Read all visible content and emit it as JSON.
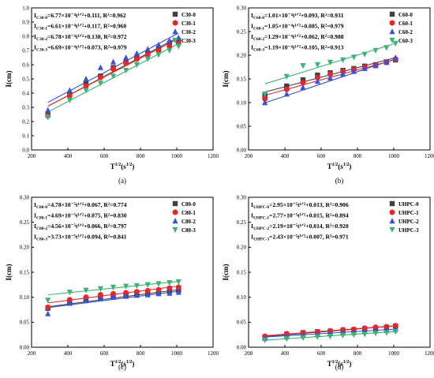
{
  "chart_data": [
    {
      "type": "scatter",
      "panel_label": "(a)",
      "xlabel": "T",
      "xlabel_sup": "1/2",
      "xlabel_unit": "(s",
      "xlabel_unit_sup": "1/2",
      "xlabel_unit_close": ")",
      "ylabel": "I(cm)",
      "xlim": [
        200,
        1200
      ],
      "ylim": [
        0,
        1.0
      ],
      "xticks": [
        200,
        400,
        600,
        800,
        1000,
        1200
      ],
      "yticks": [
        0.0,
        0.1,
        0.2,
        0.3,
        0.4,
        0.5,
        0.6,
        0.7,
        0.8,
        0.9,
        1.0
      ],
      "ytick_labels": [
        "0.0",
        "0.1",
        "0.2",
        "0.3",
        "0.4",
        "0.5",
        "0.6",
        "0.7",
        "0.8",
        "0.9",
        "1.0"
      ],
      "legend_position": "top-right",
      "x": [
        290,
        410,
        500,
        580,
        650,
        720,
        780,
        840,
        900,
        960,
        1010
      ],
      "series": [
        {
          "name": "C30-0",
          "marker": "square",
          "color": "#404040",
          "values": [
            0.25,
            0.39,
            0.47,
            0.52,
            0.58,
            0.62,
            0.65,
            0.68,
            0.71,
            0.75,
            0.77
          ],
          "fit": [
            0.111,
            0.000677
          ]
        },
        {
          "name": "C30-1",
          "marker": "circle",
          "color": "#e8262b",
          "values": [
            0.24,
            0.38,
            0.45,
            0.51,
            0.57,
            0.61,
            0.64,
            0.67,
            0.7,
            0.73,
            0.75
          ],
          "fit": [
            0.117,
            0.000661
          ]
        },
        {
          "name": "C30-2",
          "marker": "triangle-up",
          "color": "#3852d8",
          "values": [
            0.28,
            0.42,
            0.5,
            0.58,
            0.62,
            0.65,
            0.68,
            0.71,
            0.74,
            0.77,
            0.79
          ],
          "fit": [
            0.138,
            0.000678
          ]
        },
        {
          "name": "C30-3",
          "marker": "triangle-down",
          "color": "#3bb372",
          "values": [
            0.23,
            0.35,
            0.42,
            0.47,
            0.52,
            0.56,
            0.6,
            0.64,
            0.67,
            0.7,
            0.73
          ],
          "fit": [
            0.073,
            0.000669
          ]
        }
      ],
      "annotations": [
        {
          "sub": "C30-0",
          "eq": "=6.77×10⁻⁴t¹ᐟ²+0.111, R²=0.962"
        },
        {
          "sub": "C30-1",
          "eq": "=6.61×10⁻⁴t¹ᐟ²+0.117, R²=0.960"
        },
        {
          "sub": "C30-2",
          "eq": "=6.78×10⁻⁴t¹ᐟ²+0.138, R²=0.972"
        },
        {
          "sub": "C30-3",
          "eq": "=6.69×10⁻⁴t¹ᐟ²+0.073, R²=0.979"
        }
      ]
    },
    {
      "type": "scatter",
      "panel_label": "(b)",
      "xlabel": "T",
      "xlabel_sup": "1/2",
      "xlabel_unit": "(s",
      "xlabel_unit_sup": "1/2",
      "xlabel_unit_close": ")",
      "ylabel": "I(cm)",
      "xlim": [
        200,
        1200
      ],
      "ylim": [
        0.0,
        0.3
      ],
      "xticks": [
        200,
        400,
        600,
        800,
        1000,
        1200
      ],
      "yticks": [
        0.0,
        0.05,
        0.1,
        0.15,
        0.2,
        0.25,
        0.3
      ],
      "ytick_labels": [
        "0.00",
        "0.05",
        "0.10",
        "0.15",
        "0.20",
        "0.25",
        "0.30"
      ],
      "legend_position": "top-right",
      "x": [
        290,
        410,
        500,
        580,
        650,
        720,
        780,
        840,
        900,
        960,
        1010
      ],
      "series": [
        {
          "name": "C60-0",
          "marker": "square",
          "color": "#404040",
          "values": [
            0.115,
            0.135,
            0.148,
            0.158,
            0.163,
            0.168,
            0.172,
            0.177,
            0.18,
            0.186,
            0.19
          ],
          "fit": [
            0.093,
            0.000101
          ]
        },
        {
          "name": "C60-1",
          "marker": "circle",
          "color": "#e8262b",
          "values": [
            0.108,
            0.128,
            0.142,
            0.153,
            0.16,
            0.166,
            0.17,
            0.175,
            0.179,
            0.185,
            0.192
          ],
          "fit": [
            0.085,
            0.000105
          ]
        },
        {
          "name": "C60-2",
          "marker": "triangle-up",
          "color": "#3852d8",
          "values": [
            0.1,
            0.118,
            0.132,
            0.145,
            0.152,
            0.16,
            0.166,
            0.172,
            0.178,
            0.185,
            0.195
          ],
          "fit": [
            0.062,
            0.000129
          ]
        },
        {
          "name": "C60-3",
          "marker": "triangle-down",
          "color": "#3bb372",
          "values": [
            0.118,
            0.155,
            0.178,
            0.18,
            0.185,
            0.19,
            0.196,
            0.202,
            0.21,
            0.216,
            0.225
          ],
          "fit": [
            0.105,
            0.000119
          ]
        }
      ],
      "annotations": [
        {
          "sub": "C60-0",
          "eq": "=1.01×10⁻⁴t¹ᐟ²+0.093, R²=0.931"
        },
        {
          "sub": "C60-1",
          "eq": "=1.05×10⁻⁴t¹ᐟ²+0.085, R²=0.979"
        },
        {
          "sub": "C60-2",
          "eq": "=1.29×10⁻⁴t¹ᐟ²+0.062, R²=0.988"
        },
        {
          "sub": "C60-3",
          "eq": "=1.19×10⁻⁴t¹ᐟ²+0.105, R²=0.913"
        }
      ]
    },
    {
      "type": "scatter",
      "panel_label": "(c)",
      "xlabel": "T",
      "xlabel_sup": "1/2",
      "xlabel_unit": "(s",
      "xlabel_unit_sup": "1/2",
      "xlabel_unit_close": ")",
      "ylabel": "I(cm)",
      "xlim": [
        200,
        1200
      ],
      "ylim": [
        0.0,
        0.3
      ],
      "xticks": [
        200,
        400,
        600,
        800,
        1000,
        1200
      ],
      "yticks": [
        0.0,
        0.05,
        0.1,
        0.15,
        0.2,
        0.25,
        0.3
      ],
      "ytick_labels": [
        "0.00",
        "0.05",
        "0.10",
        "0.15",
        "0.20",
        "0.25",
        "0.30"
      ],
      "legend_position": "top-right",
      "x": [
        290,
        410,
        500,
        580,
        650,
        720,
        780,
        840,
        900,
        960,
        1010
      ],
      "series": [
        {
          "name": "C80-0",
          "marker": "square",
          "color": "#404040",
          "values": [
            0.078,
            0.09,
            0.096,
            0.1,
            0.103,
            0.105,
            0.107,
            0.108,
            0.11,
            0.112,
            0.114
          ],
          "fit": [
            0.067,
            4.78e-05
          ]
        },
        {
          "name": "C80-1",
          "marker": "circle",
          "color": "#e8262b",
          "values": [
            0.08,
            0.095,
            0.1,
            0.105,
            0.107,
            0.109,
            0.111,
            0.113,
            0.115,
            0.118,
            0.12
          ],
          "fit": [
            0.075,
            4.69e-05
          ]
        },
        {
          "name": "C80-2",
          "marker": "triangle-up",
          "color": "#3852d8",
          "values": [
            0.067,
            0.088,
            0.093,
            0.097,
            0.1,
            0.102,
            0.104,
            0.105,
            0.107,
            0.108,
            0.11
          ],
          "fit": [
            0.066,
            4.56e-05
          ]
        },
        {
          "name": "C80-3",
          "marker": "triangle-down",
          "color": "#3bb372",
          "values": [
            0.094,
            0.11,
            0.114,
            0.117,
            0.12,
            0.122,
            0.123,
            0.125,
            0.127,
            0.129,
            0.131
          ],
          "fit": [
            0.094,
            3.73e-05
          ]
        }
      ],
      "annotations": [
        {
          "sub": "C80-0",
          "eq": "=4.78×10⁻⁵t¹ᐟ²+0.067, R²=0.774"
        },
        {
          "sub": "C80-1",
          "eq": "=4.69×10⁻⁵t¹ᐟ²+0.075, R²=0.830"
        },
        {
          "sub": "C80-2",
          "eq": "=4.56×10⁻⁵t¹ᐟ²+0.066, R²=0.797"
        },
        {
          "sub": "C80-3",
          "eq": "=3.73×10⁻⁵t¹ᐟ²+0.094, R²=0.841"
        }
      ]
    },
    {
      "type": "scatter",
      "panel_label": "(d)",
      "xlabel": "T",
      "xlabel_sup": "1/2",
      "xlabel_unit": "(s",
      "xlabel_unit_sup": "1/2",
      "xlabel_unit_close": ")",
      "ylabel": "I(cm)",
      "xlim": [
        200,
        1200
      ],
      "ylim": [
        0.0,
        0.3
      ],
      "xticks": [
        200,
        400,
        600,
        800,
        1000,
        1200
      ],
      "yticks": [
        0.0,
        0.05,
        0.1,
        0.15,
        0.2,
        0.25,
        0.3
      ],
      "ytick_labels": [
        "0.00",
        "0.05",
        "0.10",
        "0.15",
        "0.20",
        "0.25",
        "0.30"
      ],
      "legend_position": "top-right",
      "x": [
        290,
        410,
        500,
        580,
        650,
        720,
        780,
        840,
        900,
        960,
        1010
      ],
      "series": [
        {
          "name": "UHPC-0",
          "marker": "square",
          "color": "#404040",
          "values": [
            0.02,
            0.026,
            0.029,
            0.031,
            0.032,
            0.034,
            0.035,
            0.037,
            0.038,
            0.04,
            0.042
          ],
          "fit": [
            0.013,
            2.95e-05
          ]
        },
        {
          "name": "UHPC-1",
          "marker": "circle",
          "color": "#e8262b",
          "values": [
            0.022,
            0.027,
            0.029,
            0.031,
            0.033,
            0.035,
            0.036,
            0.038,
            0.04,
            0.041,
            0.043
          ],
          "fit": [
            0.015,
            2.77e-05
          ]
        },
        {
          "name": "UHPC-2",
          "marker": "triangle-up",
          "color": "#3852d8",
          "values": [
            0.018,
            0.022,
            0.024,
            0.026,
            0.028,
            0.029,
            0.03,
            0.032,
            0.033,
            0.034,
            0.036
          ],
          "fit": [
            0.014,
            2.19e-05
          ]
        },
        {
          "name": "UHPC-3",
          "marker": "triangle-down",
          "color": "#3bb372",
          "values": [
            0.014,
            0.017,
            0.019,
            0.021,
            0.022,
            0.024,
            0.025,
            0.026,
            0.028,
            0.029,
            0.031
          ],
          "fit": [
            0.007,
            2.43e-05
          ]
        }
      ],
      "annotations": [
        {
          "sub": "UHPC-0",
          "eq": "=2.95×10⁻⁵t¹ᐟ²+0.013, R²=0.906"
        },
        {
          "sub": "UHPC-1",
          "eq": "=2.77×10⁻⁵t¹ᐟ²+0.015, R²=0.894"
        },
        {
          "sub": "UHPC-2",
          "eq": "=2.19×10⁻⁵t¹ᐟ²+0.014, R²=0.920"
        },
        {
          "sub": "UHPC-3",
          "eq": "=2.43×10⁻⁵t¹ᐟ²+0.007, R²=0.971"
        }
      ]
    }
  ]
}
